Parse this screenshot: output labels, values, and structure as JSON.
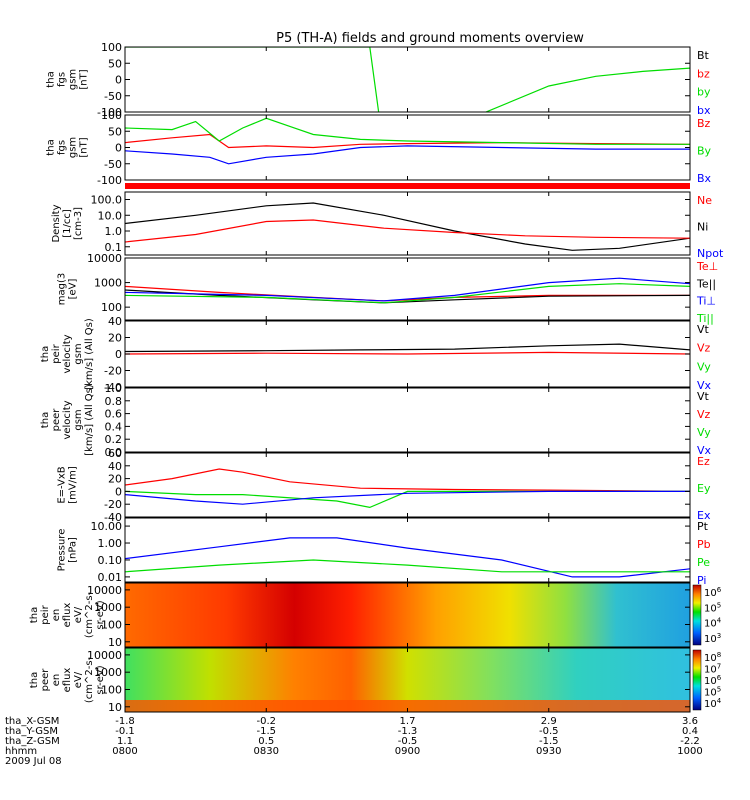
{
  "title": "P5 (TH-A) fields and ground moments overview",
  "colors": {
    "black": "#000000",
    "red": "#ff0000",
    "green": "#00dd00",
    "blue": "#0000ff"
  },
  "chart_data": [
    {
      "type": "line",
      "panel": "fgs-gsm-raw",
      "ylabel": [
        "tha",
        "fgs",
        "gsm",
        "[nT]"
      ],
      "ylim": [
        -100,
        100
      ],
      "yticks": [
        "100",
        "50",
        "0",
        "-50",
        "-100"
      ],
      "legend": [
        {
          "name": "Bt",
          "color": "black"
        },
        {
          "name": "bz",
          "color": "red"
        },
        {
          "name": "by",
          "color": "green"
        },
        {
          "name": "bx",
          "color": "blue"
        }
      ],
      "series": [
        {
          "name": "by",
          "color": "green",
          "x": [
            "08:00",
            "08:52",
            "08:54",
            "09:15",
            "09:30",
            "09:40",
            "09:50",
            "10:00"
          ],
          "y": [
            100,
            100,
            -115,
            -110,
            -20,
            10,
            25,
            35
          ]
        }
      ]
    },
    {
      "type": "line",
      "panel": "fgs-gsm",
      "ylabel": [
        "tha",
        "fgs",
        "gsm",
        "[nT]"
      ],
      "ylim": [
        -100,
        100
      ],
      "yticks": [
        "100",
        "50",
        "0",
        "-50",
        "-100"
      ],
      "legend": [
        {
          "name": "Bz",
          "color": "red"
        },
        {
          "name": "By",
          "color": "green"
        },
        {
          "name": "Bx",
          "color": "blue"
        }
      ],
      "series": [
        {
          "name": "Bz",
          "color": "red",
          "x": [
            "08:00",
            "08:10",
            "08:18",
            "08:22",
            "08:30",
            "08:40",
            "08:50",
            "09:00",
            "09:20",
            "09:40",
            "10:00"
          ],
          "y": [
            15,
            30,
            40,
            0,
            5,
            0,
            10,
            12,
            15,
            12,
            10
          ]
        },
        {
          "name": "By",
          "color": "green",
          "x": [
            "08:00",
            "08:10",
            "08:15",
            "08:20",
            "08:25",
            "08:30",
            "08:40",
            "08:50",
            "09:00",
            "09:20",
            "09:40",
            "10:00"
          ],
          "y": [
            60,
            55,
            80,
            20,
            60,
            90,
            40,
            25,
            20,
            15,
            10,
            10
          ]
        },
        {
          "name": "Bx",
          "color": "blue",
          "x": [
            "08:00",
            "08:10",
            "08:18",
            "08:22",
            "08:30",
            "08:40",
            "08:50",
            "09:00",
            "09:20",
            "09:40",
            "10:00"
          ],
          "y": [
            -10,
            -20,
            -30,
            -50,
            -30,
            -20,
            0,
            5,
            0,
            -5,
            -5
          ]
        }
      ]
    },
    {
      "type": "line",
      "panel": "density",
      "ylabel": [
        "Density",
        "[1/cc]",
        "[cm-3]"
      ],
      "yscale": "log",
      "ylim": [
        0.03,
        300
      ],
      "yticks": [
        "100.0",
        "10.0",
        "1.0",
        "0.1"
      ],
      "legend": [
        {
          "name": "Ne",
          "color": "red"
        },
        {
          "name": "Ni",
          "color": "black"
        },
        {
          "name": "Npot",
          "color": "blue"
        }
      ],
      "series": [
        {
          "name": "Ni",
          "color": "black",
          "x": [
            "08:00",
            "08:15",
            "08:30",
            "08:40",
            "08:55",
            "09:10",
            "09:25",
            "09:35",
            "09:45",
            "10:00"
          ],
          "y": [
            3,
            10,
            40,
            60,
            10,
            1,
            0.15,
            0.06,
            0.08,
            0.35
          ]
        },
        {
          "name": "Ne",
          "color": "red",
          "x": [
            "08:00",
            "08:15",
            "08:30",
            "08:40",
            "08:55",
            "09:10",
            "09:25",
            "09:40",
            "10:00"
          ],
          "y": [
            0.2,
            0.6,
            4,
            5,
            1.5,
            0.8,
            0.5,
            0.4,
            0.35
          ]
        }
      ]
    },
    {
      "type": "line",
      "panel": "temperature",
      "ylabel": [
        "mag(3",
        "[eV]"
      ],
      "yscale": "log",
      "ylim": [
        30,
        10000
      ],
      "yticks": [
        "10000",
        "1000",
        "100"
      ],
      "legend": [
        {
          "name": "Te⊥",
          "color": "red"
        },
        {
          "name": "Te||",
          "color": "black"
        },
        {
          "name": "Ti⊥",
          "color": "blue"
        },
        {
          "name": "Ti||",
          "color": "green"
        }
      ],
      "series": [
        {
          "name": "Te⊥",
          "color": "red",
          "x": [
            "08:00",
            "08:20",
            "08:40",
            "08:55",
            "09:10",
            "09:30",
            "10:00"
          ],
          "y": [
            700,
            400,
            250,
            180,
            250,
            300,
            300
          ]
        },
        {
          "name": "Te||",
          "color": "black",
          "x": [
            "08:00",
            "08:20",
            "08:40",
            "08:55",
            "09:10",
            "09:30",
            "10:00"
          ],
          "y": [
            500,
            300,
            200,
            150,
            200,
            280,
            300
          ]
        },
        {
          "name": "Ti⊥",
          "color": "blue",
          "x": [
            "08:00",
            "08:30",
            "08:55",
            "09:10",
            "09:30",
            "09:45",
            "10:00"
          ],
          "y": [
            400,
            300,
            180,
            300,
            1000,
            1500,
            900
          ]
        },
        {
          "name": "Ti||",
          "color": "green",
          "x": [
            "08:00",
            "08:30",
            "08:55",
            "09:10",
            "09:30",
            "09:45",
            "10:00"
          ],
          "y": [
            300,
            250,
            150,
            250,
            700,
            900,
            700
          ]
        }
      ]
    },
    {
      "type": "line",
      "panel": "peir-velocity",
      "ylabel": [
        "tha",
        "peir",
        "velocity",
        "gsm",
        "[km/s] (All Qs)"
      ],
      "ylim": [
        -40,
        40
      ],
      "yticks": [
        "40",
        "20",
        "0",
        "-20",
        "-40"
      ],
      "legend": [
        {
          "name": "Vt",
          "color": "black"
        },
        {
          "name": "Vz",
          "color": "red"
        },
        {
          "name": "Vy",
          "color": "green"
        },
        {
          "name": "Vx",
          "color": "blue"
        }
      ],
      "series": [
        {
          "name": "Vt",
          "color": "black",
          "x": [
            "08:00",
            "08:30",
            "08:50",
            "09:10",
            "09:30",
            "09:45",
            "10:00"
          ],
          "y": [
            3,
            4,
            5,
            6,
            10,
            12,
            5
          ]
        },
        {
          "name": "Vz",
          "color": "red",
          "x": [
            "08:00",
            "08:30",
            "09:00",
            "09:30",
            "10:00"
          ],
          "y": [
            0,
            1,
            0,
            2,
            0
          ]
        }
      ]
    },
    {
      "type": "line",
      "panel": "peer-velocity",
      "ylabel": [
        "tha",
        "peer",
        "velocity",
        "gsm",
        "[km/s] (All Qs)"
      ],
      "ylim": [
        0,
        1
      ],
      "yticks": [
        "1.0",
        "0.8",
        "0.6",
        "0.4",
        "0.2",
        "0.0"
      ],
      "legend": [
        {
          "name": "Vt",
          "color": "black"
        },
        {
          "name": "Vz",
          "color": "red"
        },
        {
          "name": "Vy",
          "color": "green"
        },
        {
          "name": "Vx",
          "color": "blue"
        }
      ],
      "series": []
    },
    {
      "type": "line",
      "panel": "efield",
      "ylabel": [
        "E=-VxB",
        "[mV/m]"
      ],
      "ylim": [
        -40,
        60
      ],
      "yticks": [
        "60",
        "40",
        "20",
        "0",
        "-20",
        "-40"
      ],
      "legend": [
        {
          "name": "Ez",
          "color": "red"
        },
        {
          "name": "Ey",
          "color": "green"
        },
        {
          "name": "Ex",
          "color": "blue"
        }
      ],
      "series": [
        {
          "name": "Ez",
          "color": "red",
          "x": [
            "08:00",
            "08:10",
            "08:20",
            "08:25",
            "08:35",
            "08:50",
            "09:10",
            "09:30",
            "10:00"
          ],
          "y": [
            10,
            20,
            35,
            30,
            15,
            5,
            3,
            2,
            0
          ]
        },
        {
          "name": "Ey",
          "color": "green",
          "x": [
            "08:00",
            "08:15",
            "08:25",
            "08:45",
            "08:52",
            "09:00",
            "09:30",
            "10:00"
          ],
          "y": [
            0,
            -5,
            -5,
            -15,
            -25,
            0,
            0,
            0
          ]
        },
        {
          "name": "Ex",
          "color": "blue",
          "x": [
            "08:00",
            "08:15",
            "08:25",
            "08:40",
            "09:00",
            "09:30",
            "10:00"
          ],
          "y": [
            -5,
            -15,
            -20,
            -10,
            -3,
            0,
            0
          ]
        }
      ]
    },
    {
      "type": "line",
      "panel": "pressure",
      "ylabel": [
        "Pressure",
        "[nPa]"
      ],
      "yscale": "log",
      "ylim": [
        0.005,
        30
      ],
      "yticks": [
        "10.00",
        "1.00",
        "0.10",
        "0.01"
      ],
      "legend": [
        {
          "name": "Pt",
          "color": "black"
        },
        {
          "name": "Pb",
          "color": "red"
        },
        {
          "name": "Pe",
          "color": "green"
        },
        {
          "name": "Pi",
          "color": "blue"
        }
      ],
      "series": [
        {
          "name": "Pi",
          "color": "blue",
          "x": [
            "08:00",
            "08:20",
            "08:35",
            "08:45",
            "09:00",
            "09:20",
            "09:35",
            "09:45",
            "10:00"
          ],
          "y": [
            0.12,
            0.6,
            2,
            2,
            0.5,
            0.1,
            0.01,
            0.01,
            0.03
          ]
        },
        {
          "name": "Pe",
          "color": "green",
          "x": [
            "08:00",
            "08:20",
            "08:40",
            "09:00",
            "09:20",
            "09:40",
            "10:00"
          ],
          "y": [
            0.02,
            0.05,
            0.1,
            0.05,
            0.02,
            0.02,
            0.02
          ]
        }
      ]
    },
    {
      "type": "heatmap",
      "panel": "peir-en-eflux",
      "ylabel": [
        "tha",
        "peir",
        "en",
        "eflux",
        "eV/",
        "(cm^2-s-",
        "sr-eV)"
      ],
      "yscale": "log",
      "ylim": [
        5,
        25000
      ],
      "yticks": [
        "10000",
        "1000",
        "100",
        "10"
      ],
      "colorbar": {
        "ticks": [
          "10^6",
          "10^5",
          "10^4",
          "10^3"
        ]
      }
    },
    {
      "type": "heatmap",
      "panel": "peer-en-eflux",
      "ylabel": [
        "tha",
        "peer",
        "en",
        "eflux",
        "eV/",
        "(cm^2-s-",
        "sr-eV)"
      ],
      "yscale": "log",
      "ylim": [
        5,
        25000
      ],
      "yticks": [
        "10000",
        "1000",
        "100",
        "10"
      ],
      "colorbar": {
        "ticks": [
          "10^8",
          "10^7",
          "10^6",
          "10^5",
          "10^4"
        ]
      }
    }
  ],
  "xaxis": {
    "rows": [
      {
        "label": "tha_X-GSM",
        "values": [
          "-1.8",
          "-0.2",
          "1.7",
          "2.9",
          "3.6"
        ]
      },
      {
        "label": "tha_Y-GSM",
        "values": [
          "-0.1",
          "-1.5",
          "-1.3",
          "-0.5",
          "0.4"
        ]
      },
      {
        "label": "tha_Z-GSM",
        "values": [
          "1.1",
          "0.5",
          "-0.5",
          "-1.5",
          "-2.2"
        ]
      },
      {
        "label": "hhmm",
        "values": [
          "0800",
          "0830",
          "0900",
          "0930",
          "1000"
        ]
      }
    ],
    "date": "2009 Jul 08",
    "range": [
      "08:00",
      "10:00"
    ]
  }
}
